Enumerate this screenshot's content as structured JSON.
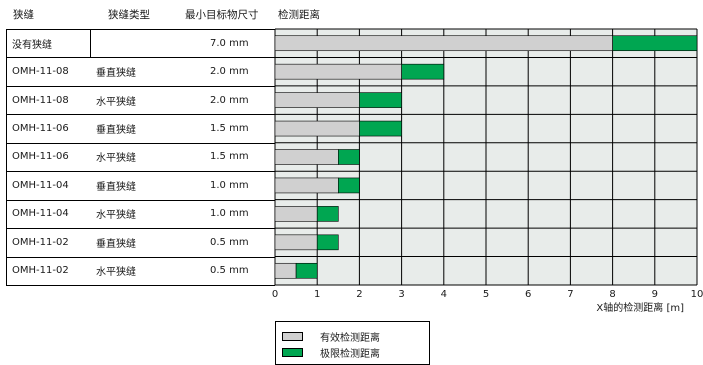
{
  "headers": {
    "col1": "狭缝",
    "col2": "狭缝类型",
    "col3": "最小目标物尺寸",
    "col4": "检测距离"
  },
  "chart_data": {
    "type": "bar",
    "orientation": "horizontal",
    "stacked": true,
    "xlabel": "X轴的检测距离 [m]",
    "xlim": [
      0,
      10
    ],
    "xticks": [
      "0",
      "1",
      "2",
      "3",
      "4",
      "5",
      "6",
      "7",
      "8",
      "9",
      "10"
    ],
    "grid": true,
    "rows": [
      {
        "slit": "没有狭缝",
        "type": "",
        "size": "7.0 mm",
        "effective": 8.0,
        "limit": 10.0
      },
      {
        "slit": "OMH-11-08",
        "type": "垂直狭缝",
        "size": "2.0 mm",
        "effective": 3.0,
        "limit": 4.0
      },
      {
        "slit": "OMH-11-08",
        "type": "水平狭缝",
        "size": "2.0 mm",
        "effective": 2.0,
        "limit": 3.0
      },
      {
        "slit": "OMH-11-06",
        "type": "垂直狭缝",
        "size": "1.5 mm",
        "effective": 2.0,
        "limit": 3.0
      },
      {
        "slit": "OMH-11-06",
        "type": "水平狭缝",
        "size": "1.5 mm",
        "effective": 1.5,
        "limit": 2.0
      },
      {
        "slit": "OMH-11-04",
        "type": "垂直狭缝",
        "size": "1.0 mm",
        "effective": 1.5,
        "limit": 2.0
      },
      {
        "slit": "OMH-11-04",
        "type": "水平狭缝",
        "size": "1.0 mm",
        "effective": 1.0,
        "limit": 1.5
      },
      {
        "slit": "OMH-11-02",
        "type": "垂直狭缝",
        "size": "0.5 mm",
        "effective": 1.0,
        "limit": 1.5
      },
      {
        "slit": "OMH-11-02",
        "type": "水平狭缝",
        "size": "0.5 mm",
        "effective": 0.5,
        "limit": 1.0
      }
    ],
    "series": [
      {
        "name": "有效检测距离",
        "color": "#d0d0d0"
      },
      {
        "name": "极限检测距离",
        "color": "#00a651"
      }
    ],
    "background_color": "#e8ecea"
  }
}
